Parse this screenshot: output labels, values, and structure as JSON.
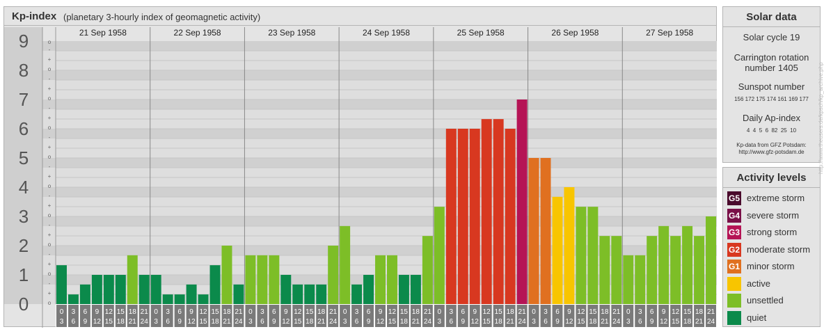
{
  "header": {
    "title": "Kp-index",
    "subtitle": "(planetary 3-hourly index of geomagnetic activity)"
  },
  "chart_data": {
    "type": "bar",
    "days": [
      "21 Sep 1958",
      "22 Sep 1958",
      "23 Sep 1958",
      "24 Sep 1958",
      "25 Sep 1958",
      "26 Sep 1958",
      "27 Sep 1958"
    ],
    "interval_starts": [
      "0",
      "3",
      "6",
      "9",
      "12",
      "15",
      "18",
      "21"
    ],
    "interval_ends": [
      "3",
      "6",
      "9",
      "12",
      "15",
      "18",
      "21",
      "24"
    ],
    "y_labels": [
      "0",
      "1",
      "2",
      "3",
      "4",
      "5",
      "6",
      "7",
      "8",
      "9"
    ],
    "y_sub_labels": [
      "o",
      "+",
      "-"
    ],
    "ylim": [
      0,
      9
    ],
    "values": [
      1.33,
      0.33,
      0.67,
      1.0,
      1.0,
      1.0,
      1.67,
      1.0,
      1.0,
      0.33,
      0.33,
      0.67,
      0.33,
      1.33,
      2.0,
      0.67,
      1.67,
      1.67,
      1.67,
      1.0,
      0.67,
      0.67,
      0.67,
      2.0,
      2.67,
      0.67,
      1.0,
      1.67,
      1.67,
      1.0,
      1.0,
      2.33,
      3.33,
      6.0,
      6.0,
      6.0,
      6.33,
      6.33,
      6.0,
      7.0,
      5.0,
      5.0,
      3.67,
      4.0,
      3.33,
      3.33,
      2.33,
      2.33,
      1.67,
      1.67,
      2.33,
      2.67,
      2.33,
      2.67,
      2.33,
      3.0
    ],
    "level_colors": {
      "quiet": "#0b8a4b",
      "unsettled": "#7dbe27",
      "active": "#f8c500",
      "G1": "#e07020",
      "G2": "#d83820",
      "G3": "#b51455",
      "G4": "#7a1048",
      "G5": "#4a0a2c"
    },
    "colors": {
      "band_dark": "#d0d0d0",
      "band_light": "#dedede",
      "left_col": "#cfcfcf",
      "axis_bottom": "#7a7a7a"
    }
  },
  "solar": {
    "title": "Solar data",
    "cycle": "Solar cycle 19",
    "carrington_line1": "Carrington rotation",
    "carrington_line2": "number 1405",
    "sunspot_title": "Sunspot number",
    "sunspot_values": "156 172 175 174 161 169 177",
    "ap_title": "Daily Ap-index",
    "ap_values": "4  4  5  6  82  25  10",
    "source_line1": "Kp-data from GFZ Potsdam:",
    "source_line2": "http://www.gfz-potsdam.de"
  },
  "levels": {
    "title": "Activity levels",
    "items": [
      {
        "code": "G5",
        "label": "extreme storm",
        "color": "#4a0a2c"
      },
      {
        "code": "G4",
        "label": "severe storm",
        "color": "#7a1048"
      },
      {
        "code": "G3",
        "label": "strong storm",
        "color": "#b51455"
      },
      {
        "code": "G2",
        "label": "moderate storm",
        "color": "#d83820"
      },
      {
        "code": "G1",
        "label": "minor storm",
        "color": "#e07020"
      },
      {
        "code": "",
        "label": "active",
        "color": "#f8c500"
      },
      {
        "code": "",
        "label": "unsettled",
        "color": "#7dbe27"
      },
      {
        "code": "",
        "label": "quiet",
        "color": "#0b8a4b"
      }
    ]
  },
  "credit": "http://www.theusers.de/kpsch/kp_archive.php"
}
